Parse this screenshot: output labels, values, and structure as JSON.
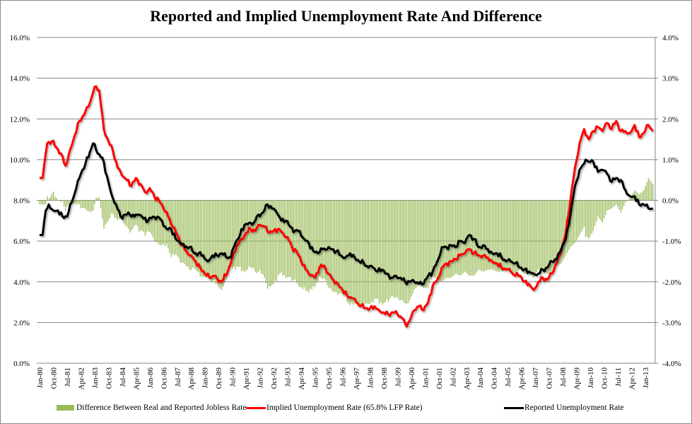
{
  "chart_data": {
    "type": "bar+line",
    "title": "Reported and Implied Unemployment Rate And Difference",
    "xlabel": "",
    "ylabel_left": "",
    "ylabel_right": "",
    "y_left": {
      "range": [
        0,
        16
      ],
      "ticks": [
        "0.0%",
        "2.0%",
        "4.0%",
        "6.0%",
        "8.0%",
        "10.0%",
        "12.0%",
        "14.0%",
        "16.0%"
      ]
    },
    "y_right": {
      "range": [
        -4,
        4
      ],
      "ticks": [
        "-4.0%",
        "-3.0%",
        "-2.0%",
        "-1.0%",
        "0.0%",
        "1.0%",
        "2.0%",
        "3.0%",
        "4.0%"
      ]
    },
    "x_range": [
      "Jan-80",
      "Jun-13"
    ],
    "x_ticks": [
      "Jan-80",
      "Oct-80",
      "Jul-81",
      "Apr-82",
      "Jan-83",
      "Oct-83",
      "Jul-84",
      "Apr-85",
      "Jan-86",
      "Oct-86",
      "Jul-87",
      "Apr-88",
      "Jan-89",
      "Oct-89",
      "Jul-90",
      "Apr-91",
      "Jan-92",
      "Oct-92",
      "Jul-93",
      "Apr-94",
      "Jan-95",
      "Oct-95",
      "Jul-96",
      "Apr-97",
      "Jan-98",
      "Oct-98",
      "Jul-99",
      "Apr-00",
      "Jan-01",
      "Oct-01",
      "Jul-02",
      "Apr-03",
      "Jan-04",
      "Oct-04",
      "Jul-05",
      "Apr-06",
      "Jan-07",
      "Oct-07",
      "Jul-08",
      "Apr-09",
      "Jan-10",
      "Oct-10",
      "Jul-11",
      "Apr-12",
      "Jan-13"
    ],
    "grid": true,
    "legend_position": "bottom",
    "series": [
      {
        "name": "Difference Between Real and Reported Jobless Rate",
        "type": "bar",
        "axis": "right",
        "color": "#9bbb59",
        "note": "monthly values; computed as (Implied - Reported) / 2 scale shown on right axis"
      },
      {
        "name": "Implied Unemployment Rate (65.8% LFP Rate)",
        "type": "line",
        "axis": "left",
        "color": "#ff0000",
        "points": [
          [
            "Jan-80",
            9.1
          ],
          [
            "Mar-80",
            9.1
          ],
          [
            "Jun-80",
            10.8
          ],
          [
            "Sep-80",
            10.9
          ],
          [
            "Dec-80",
            10.6
          ],
          [
            "Mar-81",
            10.3
          ],
          [
            "Jun-81",
            9.7
          ],
          [
            "Sep-81",
            10.5
          ],
          [
            "Dec-81",
            11.2
          ],
          [
            "Mar-82",
            11.9
          ],
          [
            "Jun-82",
            12.2
          ],
          [
            "Sep-82",
            12.6
          ],
          [
            "Dec-82",
            13.3
          ],
          [
            "Feb-83",
            13.6
          ],
          [
            "Apr-83",
            13.4
          ],
          [
            "Jul-83",
            11.5
          ],
          [
            "Oct-83",
            10.9
          ],
          [
            "Jan-84",
            10.4
          ],
          [
            "Apr-84",
            9.6
          ],
          [
            "Jul-84",
            9.2
          ],
          [
            "Oct-84",
            9.0
          ],
          [
            "Jan-85",
            8.7
          ],
          [
            "Apr-85",
            9.1
          ],
          [
            "Jul-85",
            8.8
          ],
          [
            "Oct-85",
            8.4
          ],
          [
            "Jan-86",
            8.6
          ],
          [
            "Apr-86",
            8.2
          ],
          [
            "Jul-86",
            8.0
          ],
          [
            "Oct-86",
            7.6
          ],
          [
            "Jan-87",
            7.2
          ],
          [
            "Apr-87",
            6.7
          ],
          [
            "Jul-87",
            6.3
          ],
          [
            "Oct-87",
            5.8
          ],
          [
            "Jan-88",
            5.5
          ],
          [
            "Apr-88",
            5.3
          ],
          [
            "Jul-88",
            5.0
          ],
          [
            "Oct-88",
            4.7
          ],
          [
            "Jan-89",
            4.4
          ],
          [
            "Apr-89",
            4.2
          ],
          [
            "Jul-89",
            4.3
          ],
          [
            "Oct-89",
            4.0
          ],
          [
            "Jan-90",
            4.1
          ],
          [
            "Apr-90",
            4.5
          ],
          [
            "Jul-90",
            5.2
          ],
          [
            "Oct-90",
            5.8
          ],
          [
            "Jan-91",
            6.1
          ],
          [
            "Apr-91",
            6.4
          ],
          [
            "Jul-91",
            6.6
          ],
          [
            "Oct-91",
            6.5
          ],
          [
            "Jan-92",
            6.8
          ],
          [
            "Apr-92",
            6.7
          ],
          [
            "Jul-92",
            6.4
          ],
          [
            "Oct-92",
            6.5
          ],
          [
            "Jan-93",
            6.6
          ],
          [
            "Apr-93",
            6.4
          ],
          [
            "Jul-93",
            6.2
          ],
          [
            "Oct-93",
            5.7
          ],
          [
            "Jan-94",
            5.5
          ],
          [
            "Apr-94",
            5.0
          ],
          [
            "Jul-94",
            4.6
          ],
          [
            "Oct-94",
            4.3
          ],
          [
            "Jan-95",
            4.2
          ],
          [
            "Apr-95",
            4.7
          ],
          [
            "Jul-95",
            4.8
          ],
          [
            "Oct-95",
            4.4
          ],
          [
            "Jan-96",
            4.1
          ],
          [
            "Apr-96",
            3.9
          ],
          [
            "Jul-96",
            3.6
          ],
          [
            "Oct-96",
            3.3
          ],
          [
            "Jan-97",
            3.2
          ],
          [
            "Apr-97",
            3.0
          ],
          [
            "Jul-97",
            2.8
          ],
          [
            "Oct-97",
            2.7
          ],
          [
            "Jan-98",
            2.7
          ],
          [
            "Apr-98",
            2.8
          ],
          [
            "Jul-98",
            2.6
          ],
          [
            "Oct-98",
            2.5
          ],
          [
            "Jan-99",
            2.4
          ],
          [
            "Apr-99",
            2.5
          ],
          [
            "Jul-99",
            2.4
          ],
          [
            "Oct-99",
            2.2
          ],
          [
            "Jan-00",
            1.8
          ],
          [
            "Mar-00",
            2.1
          ],
          [
            "Jun-00",
            2.6
          ],
          [
            "Sep-00",
            2.8
          ],
          [
            "Dec-00",
            2.6
          ],
          [
            "Mar-01",
            3.0
          ],
          [
            "Jun-01",
            3.8
          ],
          [
            "Sep-01",
            4.1
          ],
          [
            "Dec-01",
            4.7
          ],
          [
            "Mar-02",
            4.9
          ],
          [
            "Jun-02",
            5.0
          ],
          [
            "Sep-02",
            5.1
          ],
          [
            "Dec-02",
            5.3
          ],
          [
            "Mar-03",
            5.4
          ],
          [
            "Jun-03",
            5.6
          ],
          [
            "Sep-03",
            5.4
          ],
          [
            "Dec-03",
            5.3
          ],
          [
            "Mar-04",
            5.3
          ],
          [
            "Jun-04",
            5.2
          ],
          [
            "Sep-04",
            5.0
          ],
          [
            "Dec-04",
            4.9
          ],
          [
            "Mar-05",
            4.7
          ],
          [
            "Jun-05",
            4.6
          ],
          [
            "Sep-05",
            4.5
          ],
          [
            "Dec-05",
            4.3
          ],
          [
            "Mar-06",
            4.3
          ],
          [
            "Jun-06",
            4.0
          ],
          [
            "Sep-06",
            3.9
          ],
          [
            "Dec-06",
            3.6
          ],
          [
            "Mar-07",
            4.0
          ],
          [
            "Jun-07",
            4.2
          ],
          [
            "Sep-07",
            4.1
          ],
          [
            "Dec-07",
            4.4
          ],
          [
            "Mar-08",
            4.9
          ],
          [
            "Jun-08",
            5.5
          ],
          [
            "Sep-08",
            6.4
          ],
          [
            "Dec-08",
            8.0
          ],
          [
            "Mar-09",
            9.6
          ],
          [
            "Jun-09",
            10.8
          ],
          [
            "Sep-09",
            11.5
          ],
          [
            "Dec-09",
            11.0
          ],
          [
            "Mar-10",
            11.4
          ],
          [
            "Jun-10",
            11.6
          ],
          [
            "Sep-10",
            11.4
          ],
          [
            "Dec-10",
            11.8
          ],
          [
            "Mar-11",
            11.5
          ],
          [
            "Jun-11",
            11.9
          ],
          [
            "Sep-11",
            11.4
          ],
          [
            "Dec-11",
            11.4
          ],
          [
            "Mar-12",
            11.3
          ],
          [
            "Jun-12",
            11.7
          ],
          [
            "Sep-12",
            11.1
          ],
          [
            "Dec-12",
            11.3
          ],
          [
            "Mar-13",
            11.7
          ],
          [
            "Jun-13",
            11.4
          ]
        ]
      },
      {
        "name": "Reported Unemployment Rate",
        "type": "line",
        "axis": "left",
        "color": "#000000",
        "points": [
          [
            "Jan-80",
            6.3
          ],
          [
            "Mar-80",
            6.3
          ],
          [
            "May-80",
            7.5
          ],
          [
            "Jul-80",
            7.8
          ],
          [
            "Oct-80",
            7.5
          ],
          [
            "Jan-81",
            7.5
          ],
          [
            "Apr-81",
            7.2
          ],
          [
            "Jul-81",
            7.2
          ],
          [
            "Oct-81",
            7.9
          ],
          [
            "Jan-82",
            8.6
          ],
          [
            "Apr-82",
            9.3
          ],
          [
            "Jul-82",
            9.8
          ],
          [
            "Oct-82",
            10.4
          ],
          [
            "Dec-82",
            10.8
          ],
          [
            "Mar-83",
            10.3
          ],
          [
            "Jun-83",
            10.1
          ],
          [
            "Sep-83",
            9.2
          ],
          [
            "Dec-83",
            8.3
          ],
          [
            "Mar-84",
            7.8
          ],
          [
            "Jun-84",
            7.2
          ],
          [
            "Sep-84",
            7.3
          ],
          [
            "Dec-84",
            7.3
          ],
          [
            "Mar-85",
            7.2
          ],
          [
            "Jun-85",
            7.3
          ],
          [
            "Sep-85",
            7.1
          ],
          [
            "Dec-85",
            7.0
          ],
          [
            "Mar-86",
            7.2
          ],
          [
            "Jun-86",
            7.2
          ],
          [
            "Sep-86",
            7.0
          ],
          [
            "Dec-86",
            6.6
          ],
          [
            "Mar-87",
            6.6
          ],
          [
            "Jun-87",
            6.1
          ],
          [
            "Sep-87",
            5.9
          ],
          [
            "Dec-87",
            5.7
          ],
          [
            "Mar-88",
            5.7
          ],
          [
            "Jun-88",
            5.4
          ],
          [
            "Sep-88",
            5.4
          ],
          [
            "Dec-88",
            5.3
          ],
          [
            "Mar-89",
            5.0
          ],
          [
            "Jun-89",
            5.3
          ],
          [
            "Sep-89",
            5.3
          ],
          [
            "Dec-89",
            5.4
          ],
          [
            "Mar-90",
            5.2
          ],
          [
            "Jun-90",
            5.2
          ],
          [
            "Sep-90",
            5.9
          ],
          [
            "Dec-90",
            6.3
          ],
          [
            "Mar-91",
            6.8
          ],
          [
            "Jun-91",
            6.9
          ],
          [
            "Sep-91",
            6.9
          ],
          [
            "Dec-91",
            7.3
          ],
          [
            "Mar-92",
            7.4
          ],
          [
            "Jun-92",
            7.8
          ],
          [
            "Sep-92",
            7.6
          ],
          [
            "Dec-92",
            7.4
          ],
          [
            "Mar-93",
            7.0
          ],
          [
            "Jun-93",
            7.0
          ],
          [
            "Sep-93",
            6.7
          ],
          [
            "Dec-93",
            6.5
          ],
          [
            "Mar-94",
            6.5
          ],
          [
            "Jun-94",
            6.1
          ],
          [
            "Sep-94",
            5.9
          ],
          [
            "Dec-94",
            5.5
          ],
          [
            "Mar-95",
            5.4
          ],
          [
            "Jun-95",
            5.6
          ],
          [
            "Sep-95",
            5.6
          ],
          [
            "Dec-95",
            5.6
          ],
          [
            "Mar-96",
            5.5
          ],
          [
            "Jun-96",
            5.3
          ],
          [
            "Sep-96",
            5.2
          ],
          [
            "Dec-96",
            5.4
          ],
          [
            "Mar-97",
            5.2
          ],
          [
            "Jun-97",
            5.0
          ],
          [
            "Sep-97",
            4.9
          ],
          [
            "Dec-97",
            4.7
          ],
          [
            "Mar-98",
            4.7
          ],
          [
            "Jun-98",
            4.5
          ],
          [
            "Sep-98",
            4.6
          ],
          [
            "Dec-98",
            4.4
          ],
          [
            "Mar-99",
            4.2
          ],
          [
            "Jun-99",
            4.3
          ],
          [
            "Sep-99",
            4.2
          ],
          [
            "Dec-99",
            4.0
          ],
          [
            "Mar-00",
            4.0
          ],
          [
            "Jun-00",
            4.0
          ],
          [
            "Sep-00",
            3.9
          ],
          [
            "Dec-00",
            3.9
          ],
          [
            "Mar-01",
            4.3
          ],
          [
            "Jun-01",
            4.5
          ],
          [
            "Sep-01",
            5.0
          ],
          [
            "Dec-01",
            5.7
          ],
          [
            "Mar-02",
            5.7
          ],
          [
            "Jun-02",
            5.8
          ],
          [
            "Sep-02",
            5.7
          ],
          [
            "Dec-02",
            6.0
          ],
          [
            "Mar-03",
            5.9
          ],
          [
            "Jun-03",
            6.3
          ],
          [
            "Sep-03",
            6.1
          ],
          [
            "Dec-03",
            5.7
          ],
          [
            "Mar-04",
            5.8
          ],
          [
            "Jun-04",
            5.6
          ],
          [
            "Sep-04",
            5.4
          ],
          [
            "Dec-04",
            5.4
          ],
          [
            "Mar-05",
            5.2
          ],
          [
            "Jun-05",
            5.0
          ],
          [
            "Sep-05",
            5.0
          ],
          [
            "Dec-05",
            4.9
          ],
          [
            "Mar-06",
            4.7
          ],
          [
            "Jun-06",
            4.6
          ],
          [
            "Sep-06",
            4.5
          ],
          [
            "Dec-06",
            4.4
          ],
          [
            "Mar-07",
            4.4
          ],
          [
            "Jun-07",
            4.6
          ],
          [
            "Sep-07",
            4.7
          ],
          [
            "Dec-07",
            5.0
          ],
          [
            "Mar-08",
            5.1
          ],
          [
            "Jun-08",
            5.6
          ],
          [
            "Sep-08",
            6.1
          ],
          [
            "Dec-08",
            7.3
          ],
          [
            "Mar-09",
            8.7
          ],
          [
            "Jun-09",
            9.5
          ],
          [
            "Sep-09",
            9.8
          ],
          [
            "Oct-09",
            10.0
          ],
          [
            "Dec-09",
            9.9
          ],
          [
            "Mar-10",
            9.9
          ],
          [
            "Jun-10",
            9.4
          ],
          [
            "Sep-10",
            9.5
          ],
          [
            "Dec-10",
            9.3
          ],
          [
            "Mar-11",
            8.9
          ],
          [
            "Jun-11",
            9.1
          ],
          [
            "Sep-11",
            9.0
          ],
          [
            "Dec-11",
            8.5
          ],
          [
            "Mar-12",
            8.2
          ],
          [
            "Jun-12",
            8.2
          ],
          [
            "Sep-12",
            7.8
          ],
          [
            "Dec-12",
            7.8
          ],
          [
            "Mar-13",
            7.6
          ],
          [
            "Jun-13",
            7.6
          ]
        ]
      }
    ]
  },
  "legend": {
    "bar_label": "Difference Between Real and Reported Jobless Rate",
    "implied_label": "Implied Unemployment Rate (65.8% LFP Rate)",
    "reported_label": "Reported Unemployment Rate"
  }
}
